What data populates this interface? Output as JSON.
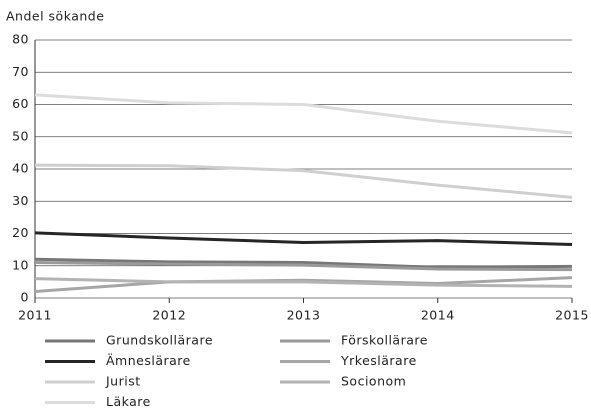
{
  "chart_data": {
    "type": "line",
    "y_title": "Andel sökande",
    "x": [
      2011,
      2012,
      2013,
      2014,
      2015
    ],
    "xlim": [
      2011,
      2015
    ],
    "xticks": [
      2011,
      2012,
      2013,
      2014,
      2015
    ],
    "ylim": [
      0,
      80
    ],
    "yticks": [
      0,
      10,
      20,
      30,
      40,
      50,
      60,
      70,
      80
    ],
    "grid": true,
    "series": [
      {
        "name": "Grundskollärare",
        "color": "#777777",
        "values": [
          12,
          11.2,
          11,
          9.5,
          9.8
        ]
      },
      {
        "name": "Förskollärare",
        "color": "#9a9a9a",
        "values": [
          11,
          10.5,
          10.2,
          9,
          8.8
        ]
      },
      {
        "name": "Ämneslärare",
        "color": "#262626",
        "values": [
          20.2,
          18.6,
          17.2,
          17.8,
          16.6
        ]
      },
      {
        "name": "Yrkeslärare",
        "color": "#a6a6a6",
        "values": [
          2,
          5,
          5.5,
          4.5,
          6.3
        ]
      },
      {
        "name": "Jurist",
        "color": "#cfcfcf",
        "values": [
          41.2,
          41,
          39.5,
          35,
          31.2
        ]
      },
      {
        "name": "Socionom",
        "color": "#b3b3b3",
        "values": [
          6,
          5,
          5,
          4,
          3.6
        ]
      },
      {
        "name": "Läkare",
        "color": "#dcdcdc",
        "values": [
          63,
          60.5,
          60,
          54.8,
          51.2
        ]
      }
    ]
  }
}
